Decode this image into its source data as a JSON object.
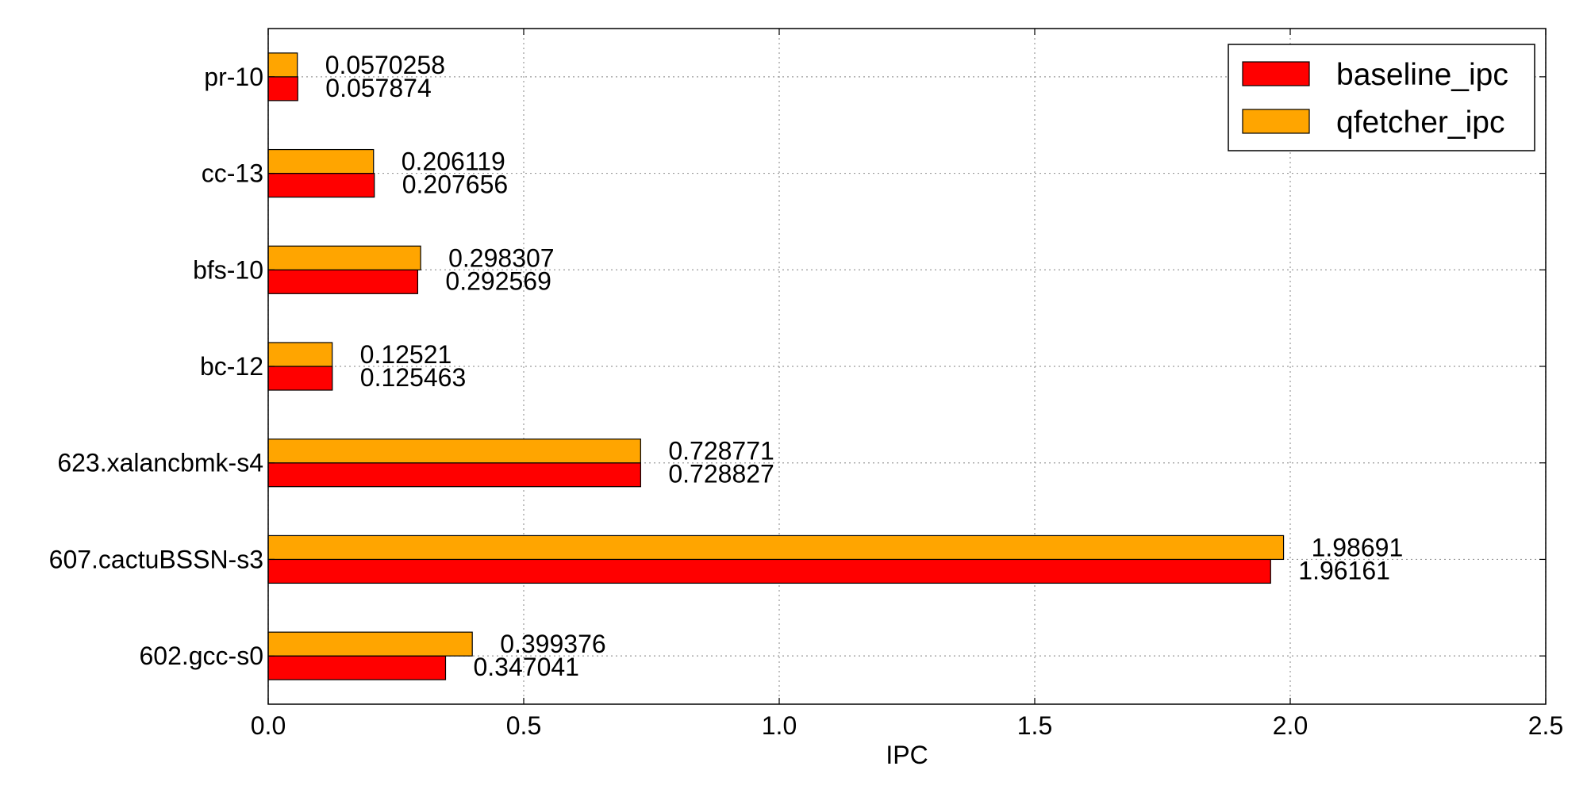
{
  "chart_data": {
    "type": "bar",
    "orientation": "horizontal",
    "categories": [
      "pr-10",
      "cc-13",
      "bfs-10",
      "bc-12",
      "623.xalancbmk-s4",
      "607.cactuBSSN-s3",
      "602.gcc-s0"
    ],
    "series": [
      {
        "name": "baseline_ipc",
        "color": "#ff0000",
        "values": [
          0.057874,
          0.207656,
          0.292569,
          0.125463,
          0.728827,
          1.96161,
          0.347041
        ],
        "labels": [
          "0.057874",
          "0.207656",
          "0.292569",
          "0.125463",
          "0.728827",
          "1.96161",
          "0.347041"
        ]
      },
      {
        "name": "qfetcher_ipc",
        "color": "#ffa500",
        "values": [
          0.0570258,
          0.206119,
          0.298307,
          0.12521,
          0.728771,
          1.98691,
          0.399376
        ],
        "labels": [
          "0.0570258",
          "0.206119",
          "0.298307",
          "0.12521",
          "0.728771",
          "1.98691",
          "0.399376"
        ]
      }
    ],
    "xlabel": "IPC",
    "ylabel": "",
    "xlim": [
      0,
      2.5
    ],
    "xticks": [
      "0.0",
      "0.5",
      "1.0",
      "1.5",
      "2.0",
      "2.5"
    ],
    "grid": true,
    "legend_position": "top-right"
  }
}
